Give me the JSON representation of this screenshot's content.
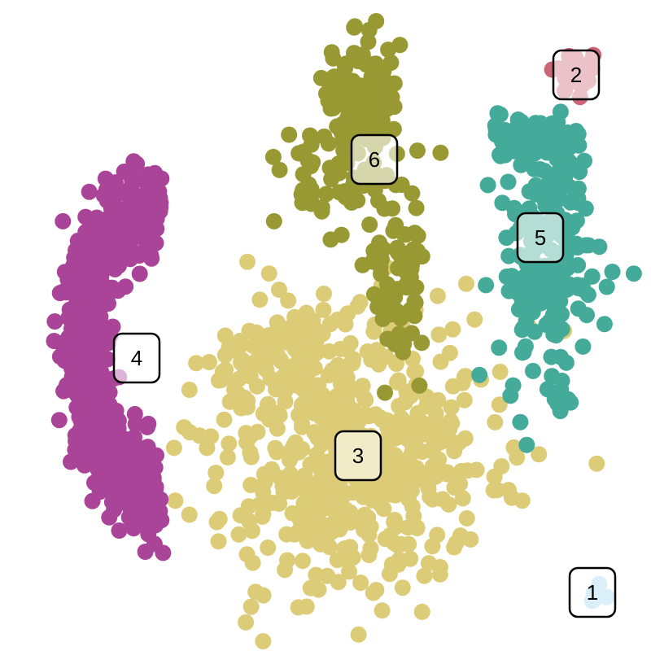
{
  "chart_data": {
    "type": "scatter",
    "title": "",
    "xlabel": "",
    "ylabel": "",
    "grid": false,
    "legend": "none",
    "xlim": [
      0,
      10
    ],
    "ylim": [
      0,
      10
    ],
    "clusters": [
      {
        "label": "1",
        "color": "#a6d8f0",
        "center": [
          9.1,
          0.9
        ],
        "spread": [
          0.08,
          0.1
        ],
        "count": 6
      },
      {
        "label": "2",
        "color": "#cc6677",
        "center": [
          8.85,
          8.85
        ],
        "spread": [
          0.2,
          0.2
        ],
        "count": 30
      },
      {
        "label": "3",
        "color": "#ddcc77",
        "center": [
          5.5,
          3.0
        ],
        "spread": [
          1.05,
          1.0
        ],
        "count": 620
      },
      {
        "label": "4",
        "color": "#aa4499",
        "center": [
          2.1,
          4.6
        ],
        "spread": [
          0.9,
          2.0
        ],
        "count": 700
      },
      {
        "label": "5",
        "color": "#44aa99",
        "center": [
          8.3,
          6.3
        ],
        "spread": [
          0.4,
          1.2
        ],
        "count": 300
      },
      {
        "label": "6",
        "color": "#999933",
        "center": [
          5.75,
          7.6
        ],
        "spread": [
          0.45,
          1.3
        ],
        "count": 260
      }
    ],
    "label_positions": [
      {
        "label": "1",
        "x": 9.1,
        "y": 0.9
      },
      {
        "label": "2",
        "x": 8.85,
        "y": 8.85
      },
      {
        "label": "3",
        "x": 5.5,
        "y": 3.0
      },
      {
        "label": "4",
        "x": 2.1,
        "y": 4.5
      },
      {
        "label": "5",
        "x": 8.3,
        "y": 6.35
      },
      {
        "label": "6",
        "x": 5.75,
        "y": 7.55
      }
    ]
  }
}
